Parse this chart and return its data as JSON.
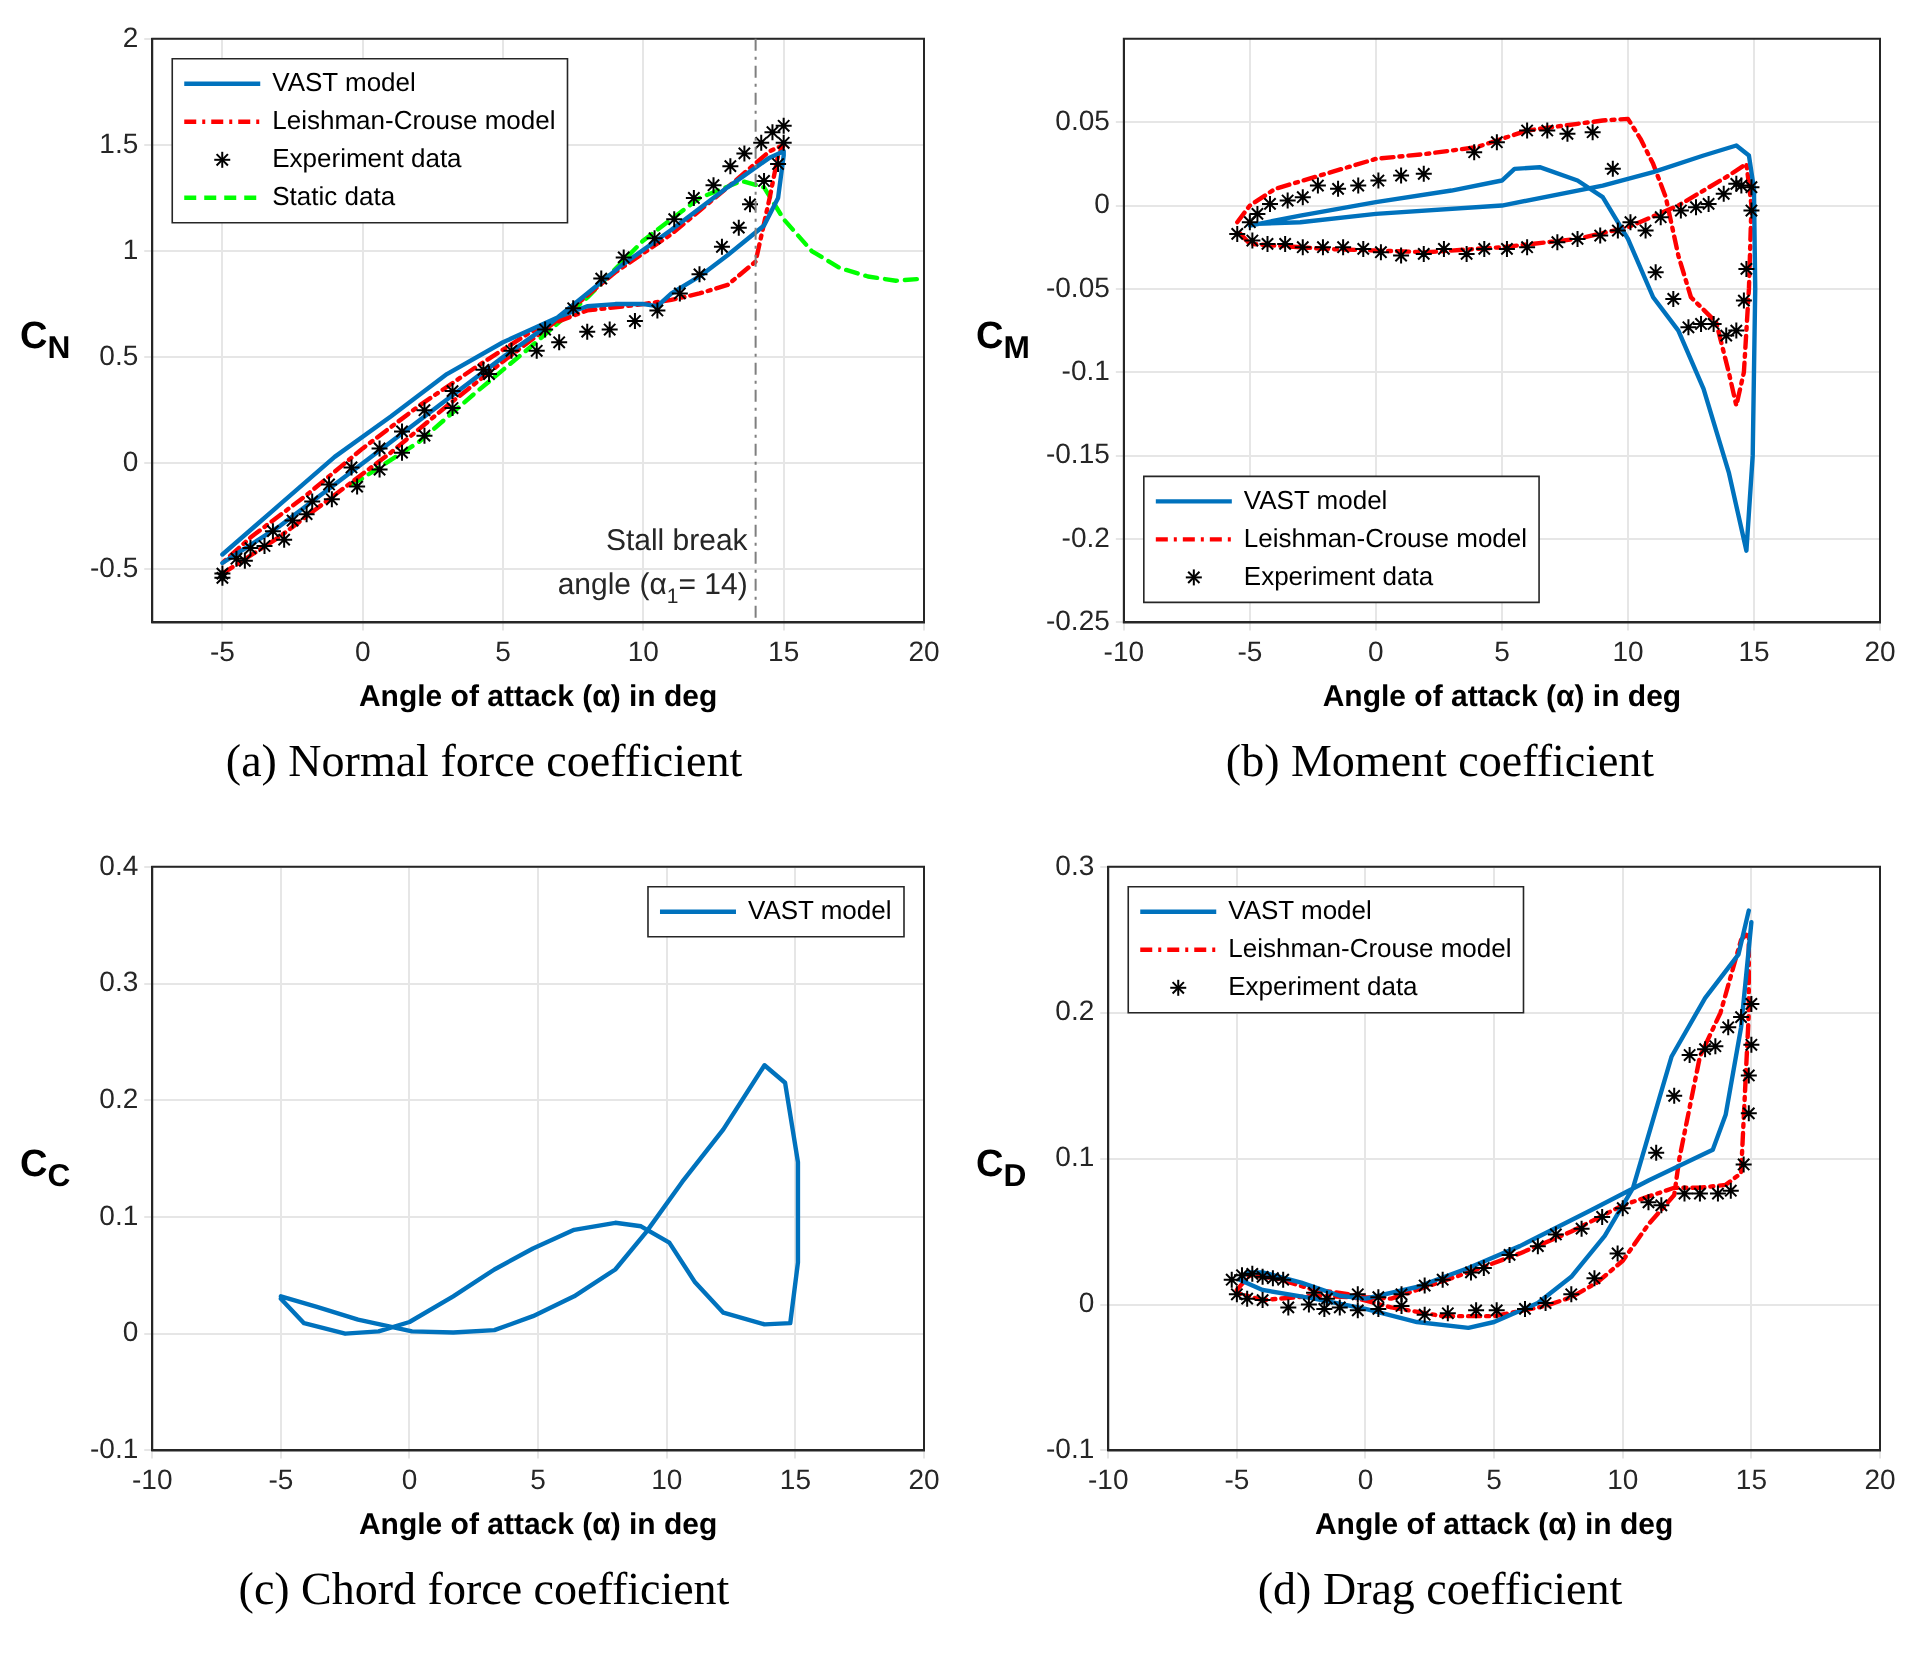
{
  "chart_data": [
    {
      "type": "line",
      "title": "(a) Normal force coefficient",
      "xlabel": "Angle of attack (α) in deg",
      "ylabel": "C$_{N}$",
      "xlim": [
        -7.5,
        20
      ],
      "xticks": [
        -5,
        0,
        5,
        10,
        15,
        20
      ],
      "ylim": [
        -0.75,
        2
      ],
      "yticks": [
        -0.5,
        0,
        0.5,
        1,
        1.5,
        2
      ],
      "grid": true,
      "legend": "top left",
      "ref_lines": [
        {
          "axis": "x",
          "value": 14,
          "label": "Stall break angle (α$_{1}$= 14)",
          "color": "#7f7f7f",
          "line_style": "dashdot"
        }
      ],
      "series": [
        {
          "name": "VAST model",
          "color": "#0072bd",
          "line_style": "solid",
          "x": [
            -5,
            -3,
            -1,
            1,
            3,
            5,
            6.5,
            8,
            9.2,
            11,
            13,
            14.5,
            15,
            15,
            14.8,
            14.3,
            13,
            12,
            11,
            10.5,
            10,
            9,
            8,
            7,
            6,
            5,
            3,
            1,
            -1,
            -3,
            -5
          ],
          "values": [
            -0.47,
            -0.3,
            -0.1,
            0.1,
            0.3,
            0.5,
            0.64,
            0.8,
            0.93,
            1.1,
            1.3,
            1.44,
            1.47,
            1.45,
            1.25,
            1.12,
            0.98,
            0.88,
            0.8,
            0.74,
            0.75,
            0.75,
            0.74,
            0.69,
            0.63,
            0.57,
            0.42,
            0.22,
            0.03,
            -0.2,
            -0.43
          ]
        },
        {
          "name": "Leishman-Crouse model",
          "color": "#ff0000",
          "line_style": "dashdot",
          "x": [
            -5,
            -3,
            -1,
            1,
            3,
            5,
            7,
            9,
            11,
            13,
            14.5,
            15,
            14.8,
            14.5,
            14,
            13,
            12,
            11,
            10,
            8,
            6,
            4,
            2,
            0,
            -2,
            -4,
            -5
          ],
          "values": [
            -0.52,
            -0.35,
            -0.15,
            0.05,
            0.27,
            0.48,
            0.68,
            0.9,
            1.08,
            1.3,
            1.47,
            1.5,
            1.45,
            1.25,
            0.95,
            0.84,
            0.8,
            0.77,
            0.75,
            0.72,
            0.62,
            0.45,
            0.27,
            0.07,
            -0.15,
            -0.35,
            -0.47
          ]
        },
        {
          "name": "Experiment data",
          "type": "scatter",
          "color": "#000000",
          "marker": "cross",
          "x": [
            -5,
            -4.5,
            -4,
            -3.2,
            -2.5,
            -1.8,
            -1.2,
            -0.4,
            0.6,
            1.4,
            2.2,
            3.2,
            4.3,
            5.3,
            6.5,
            7.5,
            8.5,
            9.3,
            10.4,
            11.1,
            11.8,
            12.5,
            13.1,
            13.6,
            14.2,
            14.6,
            15,
            15,
            14.8,
            14.3,
            13.8,
            13.4,
            12.8,
            12,
            11.3,
            10.5,
            9.7,
            8.8,
            8,
            7,
            6.2,
            4.5,
            3.2,
            2.2,
            1.4,
            0.6,
            -0.2,
            -1.1,
            -2,
            -2.8,
            -3.5,
            -4.2,
            -5
          ],
          "values": [
            -0.52,
            -0.45,
            -0.4,
            -0.32,
            -0.27,
            -0.18,
            -0.1,
            -0.02,
            0.07,
            0.15,
            0.25,
            0.34,
            0.44,
            0.53,
            0.63,
            0.73,
            0.87,
            0.97,
            1.06,
            1.15,
            1.25,
            1.31,
            1.4,
            1.46,
            1.51,
            1.56,
            1.59,
            1.51,
            1.41,
            1.33,
            1.22,
            1.11,
            1.02,
            0.89,
            0.8,
            0.72,
            0.67,
            0.63,
            0.62,
            0.57,
            0.53,
            0.42,
            0.26,
            0.13,
            0.05,
            -0.03,
            -0.11,
            -0.17,
            -0.24,
            -0.36,
            -0.39,
            -0.46,
            -0.54
          ]
        },
        {
          "name": "Static data",
          "color": "#00ff00",
          "line_style": "dashed",
          "x": [
            -0.4,
            0,
            2,
            4,
            6,
            8,
            10,
            12,
            13.5,
            14.3,
            15,
            16,
            17,
            18,
            19,
            20
          ],
          "values": [
            -0.1,
            -0.07,
            0.1,
            0.33,
            0.55,
            0.78,
            1.05,
            1.25,
            1.33,
            1.3,
            1.15,
            1.0,
            0.92,
            0.88,
            0.86,
            0.87
          ]
        }
      ]
    },
    {
      "type": "line",
      "title": "(b) Moment coefficient",
      "xlabel": "Angle of attack (α) in deg",
      "ylabel": "C$_{M}$",
      "xlim": [
        -10,
        20
      ],
      "xticks": [
        -10,
        -5,
        0,
        5,
        10,
        15,
        20
      ],
      "ylim": [
        -0.25,
        0.1
      ],
      "yticks": [
        -0.25,
        -0.2,
        -0.15,
        -0.1,
        -0.05,
        0,
        0.05
      ],
      "grid": true,
      "legend": "bottom left",
      "series": [
        {
          "name": "VAST model",
          "color": "#0072bd",
          "line_style": "solid",
          "x": [
            -5,
            -3,
            0,
            3,
            5,
            5.5,
            6.5,
            8,
            9,
            10,
            11,
            12,
            13,
            14,
            14.7,
            14.95,
            15.05,
            15,
            14.8,
            14.3,
            13,
            11,
            9,
            5,
            0,
            -3,
            -4.7
          ],
          "values": [
            -0.012,
            -0.006,
            0.002,
            0.009,
            0.015,
            0.022,
            0.023,
            0.015,
            0.005,
            -0.02,
            -0.055,
            -0.075,
            -0.11,
            -0.16,
            -0.207,
            -0.15,
            -0.05,
            0.01,
            0.03,
            0.036,
            0.03,
            0.02,
            0.012,
            0,
            -0.005,
            -0.01,
            -0.011
          ]
        },
        {
          "name": "Leishman-Crouse model",
          "color": "#ff0000",
          "line_style": "dashdot",
          "x": [
            -5.5,
            -5,
            -4,
            -2,
            0,
            2,
            4,
            6,
            8,
            9,
            10,
            10.5,
            11,
            11.5,
            12,
            12.5,
            13.5,
            14,
            14.3,
            14.6,
            14.8,
            14.9,
            14.7,
            14,
            12,
            10,
            8,
            5,
            2,
            0,
            -2,
            -4,
            -5,
            -5.5
          ],
          "values": [
            -0.01,
            0,
            0.01,
            0.019,
            0.028,
            0.031,
            0.035,
            0.045,
            0.049,
            0.051,
            0.052,
            0.04,
            0.025,
            0.005,
            -0.03,
            -0.055,
            -0.07,
            -0.1,
            -0.12,
            -0.1,
            -0.05,
            0,
            0.025,
            0.018,
            0,
            -0.013,
            -0.02,
            -0.025,
            -0.028,
            -0.027,
            -0.026,
            -0.024,
            -0.023,
            -0.015
          ]
        },
        {
          "name": "Experiment data",
          "type": "scatter",
          "color": "#000000",
          "marker": "cross",
          "x": [
            -5.5,
            -5,
            -4.7,
            -4.2,
            -3.5,
            -2.9,
            -2.3,
            -1.5,
            -0.7,
            0.1,
            1,
            1.9,
            3.9,
            4.8,
            6,
            6.8,
            7.6,
            8.6,
            9.4,
            14.5,
            14.9,
            14.9,
            14.7,
            14.6,
            14.3,
            13.9,
            13.4,
            12.9,
            12.4,
            11.8,
            11.1,
            11.3,
            12.1,
            12.7,
            13.2,
            13.8,
            14.3,
            10.7,
            10.1,
            9.6,
            8.9,
            8,
            7.2,
            6,
            5.2,
            4.3,
            3.6,
            2.7,
            1.9,
            1,
            0.2,
            -0.5,
            -1.3,
            -2.1,
            -2.9,
            -3.6,
            -4.3,
            -4.9
          ],
          "values": [
            -0.017,
            -0.01,
            -0.005,
            0.001,
            0.003,
            0.005,
            0.012,
            0.01,
            0.012,
            0.015,
            0.018,
            0.019,
            0.032,
            0.038,
            0.045,
            0.045,
            0.043,
            0.044,
            0.022,
            0.012,
            0.011,
            -0.003,
            -0.038,
            -0.057,
            -0.075,
            -0.078,
            -0.071,
            -0.071,
            -0.073,
            -0.056,
            -0.04,
            -0.007,
            -0.003,
            -0.001,
            0.001,
            0.007,
            0.013,
            -0.015,
            -0.01,
            -0.015,
            -0.018,
            -0.02,
            -0.022,
            -0.025,
            -0.026,
            -0.026,
            -0.029,
            -0.026,
            -0.029,
            -0.03,
            -0.028,
            -0.026,
            -0.025,
            -0.025,
            -0.025,
            -0.023,
            -0.023,
            -0.021
          ]
        }
      ]
    },
    {
      "type": "line",
      "title": "(c) Chord force coefficient",
      "xlabel": "Angle of attack (α) in deg",
      "ylabel": "C$_{C}$",
      "xlim": [
        -10,
        20
      ],
      "xticks": [
        -10,
        -5,
        0,
        5,
        10,
        15,
        20
      ],
      "ylim": [
        -0.1,
        0.4
      ],
      "yticks": [
        -0.1,
        0,
        0.1,
        0.2,
        0.3,
        0.4
      ],
      "grid": true,
      "legend": "top right",
      "series": [
        {
          "name": "VAST model",
          "color": "#0072bd",
          "line_style": "solid",
          "x": [
            -5,
            -3.6,
            -2,
            0.1,
            1.7,
            3.3,
            4.8,
            6.4,
            8,
            9.2,
            10.6,
            12.2,
            13.8,
            14.6,
            15.1,
            15.1,
            14.8,
            13.8,
            12.2,
            11.1,
            10.1,
            9,
            8,
            6.4,
            4.8,
            3.3,
            1.7,
            0,
            -1.2,
            -2.5,
            -4.1,
            -5
          ],
          "values": [
            0.032,
            0.023,
            0.012,
            0.002,
            0.001,
            0.003,
            0.015,
            0.032,
            0.055,
            0.087,
            0.13,
            0.175,
            0.23,
            0.215,
            0.147,
            0.061,
            0.009,
            0.008,
            0.018,
            0.044,
            0.078,
            0.092,
            0.095,
            0.089,
            0.073,
            0.055,
            0.032,
            0.01,
            0.002,
            0,
            0.009,
            0.03
          ]
        }
      ]
    },
    {
      "type": "line",
      "title": "(d) Drag coefficient",
      "xlabel": "Angle of attack (α) in deg",
      "ylabel": "C$_{D}$",
      "xlim": [
        -10,
        20
      ],
      "xticks": [
        -10,
        -5,
        0,
        5,
        10,
        15,
        20
      ],
      "ylim": [
        -0.1,
        0.3
      ],
      "yticks": [
        -0.1,
        0,
        0.1,
        0.2,
        0.3
      ],
      "grid": true,
      "legend": "top left",
      "series": [
        {
          "name": "VAST model",
          "color": "#0072bd",
          "line_style": "solid",
          "x": [
            14.9,
            14.5,
            13.2,
            11.9,
            11.4,
            10.9,
            10.4,
            9.3,
            8,
            6.7,
            5,
            4,
            2,
            0,
            -2,
            -4,
            -4.9,
            -4.6,
            -4,
            -2.5,
            -1,
            0,
            2,
            4,
            6,
            8.8,
            11,
            13.5,
            14,
            14.6,
            15
          ],
          "values": [
            0.27,
            0.24,
            0.21,
            0.17,
            0.14,
            0.11,
            0.08,
            0.047,
            0.019,
            0.001,
            -0.012,
            -0.016,
            -0.012,
            -0.003,
            0.004,
            0.01,
            0.017,
            0.022,
            0.022,
            0.015,
            0.006,
            0.004,
            0.012,
            0.025,
            0.04,
            0.065,
            0.085,
            0.106,
            0.13,
            0.19,
            0.262
          ]
        },
        {
          "name": "Leishman-Crouse model",
          "color": "#ff0000",
          "line_style": "dashdot",
          "x": [
            -5,
            -4.5,
            -3.5,
            -2,
            -1,
            0,
            1,
            2,
            4,
            6,
            8,
            10,
            12,
            13,
            14,
            14.6,
            14.9,
            14.9,
            14.6,
            13.8,
            13,
            12.2,
            12,
            11,
            10,
            9,
            8,
            7,
            5,
            3,
            1,
            -0.5,
            -2,
            -4,
            -5
          ],
          "values": [
            0.01,
            0.02,
            0.018,
            0.01,
            0.008,
            0.005,
            0.004,
            0.01,
            0.022,
            0.035,
            0.05,
            0.068,
            0.08,
            0.08,
            0.082,
            0.09,
            0.2,
            0.255,
            0.25,
            0.2,
            0.17,
            0.1,
            0.075,
            0.055,
            0.03,
            0.015,
            0.005,
            -0.001,
            -0.008,
            -0.008,
            -0.002,
            0.005,
            0.006,
            0.003,
            0.008
          ]
        },
        {
          "name": "Experiment data",
          "type": "scatter",
          "color": "#000000",
          "marker": "cross",
          "x": [
            -5.2,
            -4.8,
            -4.4,
            -4,
            -3.6,
            -3.2,
            -2,
            -1.5,
            -0.3,
            0.5,
            1.4,
            2.3,
            3,
            4.1,
            4.6,
            5.6,
            6.7,
            7.4,
            8.4,
            9.2,
            10,
            11,
            11.5,
            12.4,
            13,
            13.7,
            14.2,
            14.7,
            14.9,
            14.9,
            15,
            15,
            14.6,
            14.1,
            13.6,
            13.2,
            12.6,
            12,
            11.3,
            9.8,
            8.9,
            8,
            7,
            6.2,
            5.1,
            4.3,
            3.2,
            2.3,
            1.4,
            0.5,
            -0.3,
            -1,
            -1.6,
            -2.2,
            -3,
            -4,
            -4.6,
            -5
          ],
          "values": [
            0.017,
            0.02,
            0.021,
            0.019,
            0.018,
            0.017,
            0.008,
            0.004,
            0.007,
            0.005,
            0.007,
            0.013,
            0.017,
            0.022,
            0.025,
            0.034,
            0.04,
            0.048,
            0.052,
            0.06,
            0.066,
            0.07,
            0.068,
            0.076,
            0.076,
            0.076,
            0.078,
            0.096,
            0.131,
            0.157,
            0.178,
            0.206,
            0.197,
            0.19,
            0.177,
            0.175,
            0.171,
            0.143,
            0.104,
            0.035,
            0.018,
            0.007,
            0.001,
            -0.003,
            -0.004,
            -0.004,
            -0.006,
            -0.007,
            -0.001,
            -0.003,
            -0.004,
            -0.002,
            -0.003,
            0,
            -0.002,
            0.003,
            0.004,
            0.007
          ]
        }
      ]
    }
  ]
}
